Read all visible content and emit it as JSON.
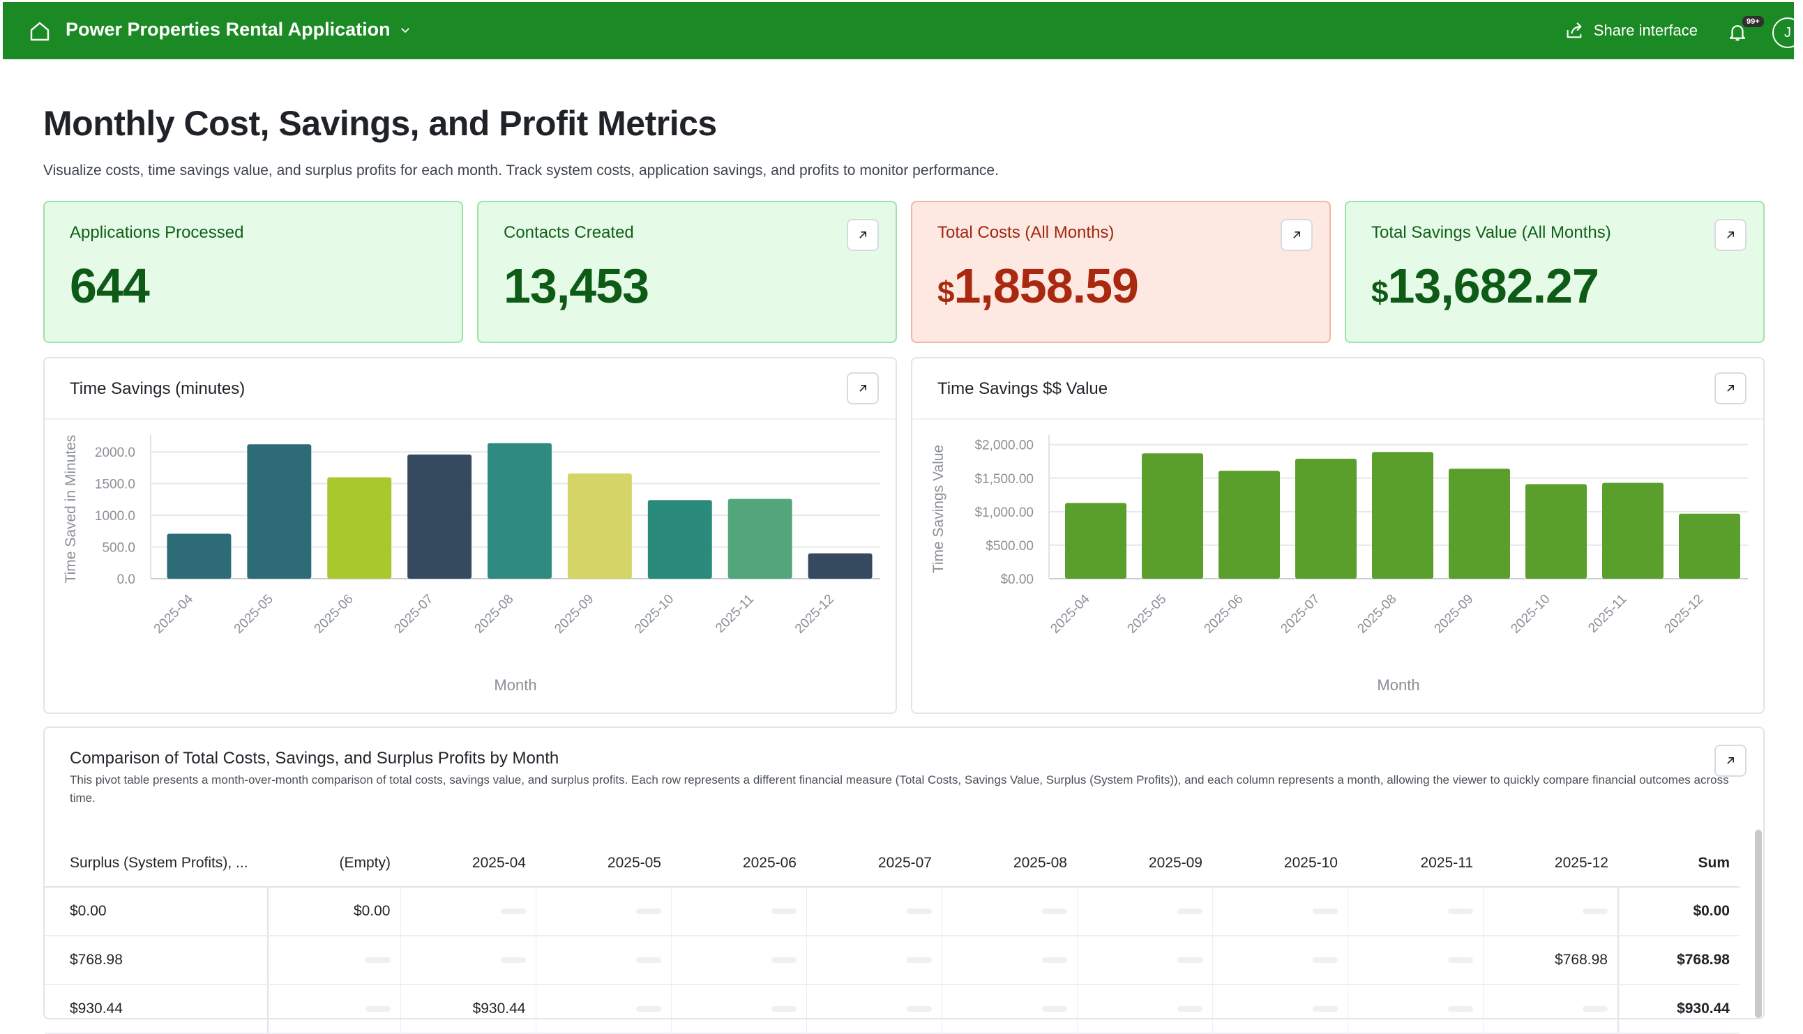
{
  "app": {
    "title": "Power Properties Rental Application",
    "share_label": "Share interface",
    "notifications_badge": "99+",
    "avatar_initial": "J"
  },
  "page": {
    "title": "Monthly Cost, Savings, and Profit Metrics",
    "subtitle": "Visualize costs, time savings value, and surplus profits for each month. Track system costs, application savings, and profits to monitor performance."
  },
  "metrics": [
    {
      "label": "Applications Processed",
      "currency": "",
      "value": "644"
    },
    {
      "label": "Contacts Created",
      "currency": "",
      "value": "13,453"
    },
    {
      "label": "Total Costs (All Months)",
      "currency": "$",
      "value": "1,858.59"
    },
    {
      "label": "Total Savings Value (All Months)",
      "currency": "$",
      "value": "13,682.27"
    }
  ],
  "charts": {
    "minutes_title": "Time Savings (minutes)",
    "value_title": "Time Savings $$ Value"
  },
  "chart_data": [
    {
      "type": "bar",
      "categories": [
        "2025-04",
        "2025-05",
        "2025-06",
        "2025-07",
        "2025-08",
        "2025-09",
        "2025-10",
        "2025-11",
        "2025-12"
      ],
      "values": [
        710,
        2120,
        1600,
        1960,
        2140,
        1660,
        1240,
        1260,
        400
      ],
      "colors": [
        "#2d6b77",
        "#2d6b77",
        "#a8c82e",
        "#354a5f",
        "#2f8b80",
        "#d4d566",
        "#2a8a7c",
        "#52a67a",
        "#354a5f"
      ],
      "xlabel": "Month",
      "ylabel": "Time Saved in Minutes",
      "ylim": [
        0,
        2200
      ],
      "yticks": [
        "0.0",
        "500.0",
        "1000.0",
        "1500.0",
        "2000.0"
      ],
      "ytick_values": [
        0,
        500,
        1000,
        1500,
        2000
      ],
      "grid": true
    },
    {
      "type": "bar",
      "categories": [
        "2025-04",
        "2025-05",
        "2025-06",
        "2025-07",
        "2025-08",
        "2025-09",
        "2025-10",
        "2025-11",
        "2025-12"
      ],
      "values": [
        1130,
        1870,
        1610,
        1790,
        1890,
        1640,
        1410,
        1430,
        970
      ],
      "colors": [
        "#5a9e2c"
      ],
      "xlabel": "Month",
      "ylabel": "Time Savings Value",
      "ylim": [
        0,
        2080
      ],
      "yticks": [
        "$0.00",
        "$500.00",
        "$1,000.00",
        "$1,500.00",
        "$2,000.00"
      ],
      "ytick_values": [
        0,
        500,
        1000,
        1500,
        2000
      ],
      "grid": true
    }
  ],
  "table": {
    "title": "Comparison of Total Costs, Savings, and Surplus Profits by Month",
    "description": "This pivot table presents a month-over-month comparison of total costs, savings value, and surplus profits. Each row represents a different financial measure (Total Costs, Savings Value, Surplus (System Profits)), and each column represents a month, allowing the viewer to quickly compare financial outcomes across time.",
    "headers": [
      "Surplus (System Profits), ...",
      "(Empty)",
      "2025-04",
      "2025-05",
      "2025-06",
      "2025-07",
      "2025-08",
      "2025-09",
      "2025-10",
      "2025-11",
      "2025-12",
      "Sum"
    ],
    "rows": [
      {
        "label": "$0.00",
        "cells": [
          "$0.00",
          "",
          "",
          "",
          "",
          "",
          "",
          "",
          "",
          ""
        ],
        "sum": "$0.00"
      },
      {
        "label": "$768.98",
        "cells": [
          "",
          "",
          "",
          "",
          "",
          "",
          "",
          "",
          "",
          "$768.98"
        ],
        "sum": "$768.98"
      },
      {
        "label": "$930.44",
        "cells": [
          "",
          "$930.44",
          "",
          "",
          "",
          "",
          "",
          "",
          "",
          ""
        ],
        "sum": "$930.44"
      }
    ]
  }
}
